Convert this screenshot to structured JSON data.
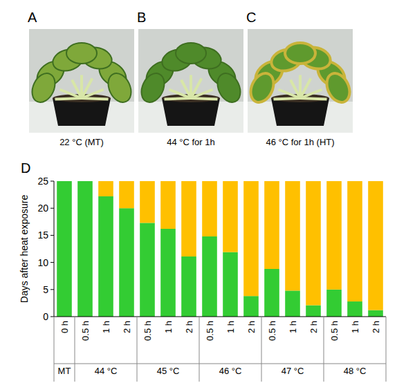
{
  "panels": [
    {
      "label": "A",
      "caption": "22 °C (MT)"
    },
    {
      "label": "B",
      "caption": "44 °C for 1h"
    },
    {
      "label": "C",
      "caption": "46 °C for 1h (HT)"
    }
  ],
  "chart_data": {
    "type": "bar",
    "title": "D",
    "y_label": "Days after heat exposure",
    "stacked": true,
    "grid": false,
    "categories": [
      "0 h",
      "0.5 h",
      "1 h",
      "2 h",
      "0.5 h",
      "1 h",
      "2 h",
      "0.5 h",
      "1 h",
      "2 h",
      "0.5 h",
      "1 h",
      "2 h",
      "0.5 h",
      "1 h",
      "2 h"
    ],
    "groups": [
      {
        "label": "MT",
        "size": 1
      },
      {
        "label": "44 °C",
        "size": 3
      },
      {
        "label": "45 °C",
        "size": 3
      },
      {
        "label": "46 °C",
        "size": 3
      },
      {
        "label": "47 °C",
        "size": 3
      },
      {
        "label": "48 °C",
        "size": 3
      }
    ],
    "series": [
      {
        "color": "#33cc33",
        "values": [
          25,
          25,
          22.2,
          20,
          17.3,
          16.2,
          11.1,
          14.8,
          11.9,
          3.8,
          8.8,
          4.8,
          2.1,
          5.0,
          2.8,
          1.2
        ]
      },
      {
        "color": "#ffc000",
        "values": [
          0,
          0,
          2.8,
          5,
          7.7,
          8.8,
          13.9,
          10.2,
          13.1,
          21.2,
          16.2,
          20.2,
          22.9,
          20,
          22.2,
          23.8
        ]
      }
    ],
    "ylim": [
      0,
      25
    ],
    "yticks": [
      0,
      5,
      10,
      15,
      20,
      25
    ]
  }
}
